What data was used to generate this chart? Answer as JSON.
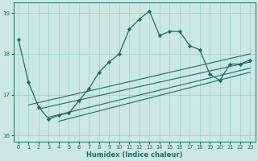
{
  "xlabel": "Humidex (Indice chaleur)",
  "xlim": [
    -0.5,
    23.5
  ],
  "ylim": [
    15.85,
    19.25
  ],
  "yticks": [
    16,
    17,
    18,
    19
  ],
  "xticks": [
    0,
    1,
    2,
    3,
    4,
    5,
    6,
    7,
    8,
    9,
    10,
    11,
    12,
    13,
    14,
    15,
    16,
    17,
    18,
    19,
    20,
    21,
    22,
    23
  ],
  "bg_color": "#cce8e4",
  "line_color": "#1a6e62",
  "grid_color": "#9ecfca",
  "main_x": [
    0,
    1,
    2,
    3,
    4,
    5,
    6,
    7,
    8,
    9,
    10,
    11,
    12,
    13,
    14,
    15,
    16,
    17,
    18,
    19,
    20,
    21,
    22,
    23
  ],
  "main_y": [
    18.35,
    17.3,
    16.7,
    16.4,
    16.5,
    16.55,
    16.85,
    17.15,
    17.55,
    17.8,
    18.0,
    18.6,
    18.85,
    19.05,
    18.45,
    18.55,
    18.55,
    18.2,
    18.1,
    17.5,
    17.35,
    17.75,
    17.75,
    17.85
  ],
  "trend1_x": [
    1,
    23
  ],
  "trend1_y": [
    16.75,
    18.0
  ],
  "trend2_x": [
    2,
    23
  ],
  "trend2_y": [
    16.65,
    17.8
  ],
  "trend3_x": [
    3,
    23
  ],
  "trend3_y": [
    16.45,
    17.65
  ],
  "trend4_x": [
    4,
    23
  ],
  "trend4_y": [
    16.35,
    17.55
  ]
}
